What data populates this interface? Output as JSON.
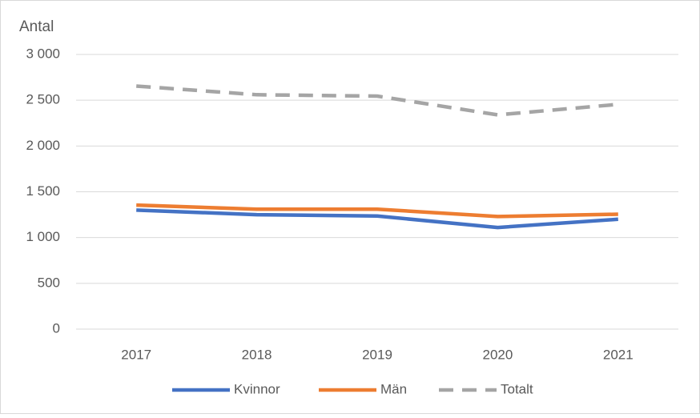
{
  "chart_data": {
    "type": "line",
    "y_axis_label": "Antal",
    "categories": [
      "2017",
      "2018",
      "2019",
      "2020",
      "2021"
    ],
    "series": [
      {
        "name": "Kvinnor",
        "color": "#4472c4",
        "dash": false,
        "values": [
          1300,
          1250,
          1235,
          1110,
          1200
        ]
      },
      {
        "name": "Män",
        "color": "#ed7d31",
        "dash": false,
        "values": [
          1355,
          1310,
          1310,
          1230,
          1255
        ]
      },
      {
        "name": "Totalt",
        "color": "#a5a5a5",
        "dash": true,
        "values": [
          2655,
          2560,
          2545,
          2340,
          2455
        ]
      }
    ],
    "ylim": [
      0,
      3000
    ],
    "yticks": [
      0,
      500,
      {
        "value": 1000,
        "label": "1 000"
      },
      {
        "value": 1500,
        "label": "1 500"
      },
      {
        "value": 2000,
        "label": "2 000"
      },
      {
        "value": 2500,
        "label": "2 500"
      },
      {
        "value": 3000,
        "label": "3 000"
      }
    ],
    "grid": true,
    "legend": "bottom"
  }
}
